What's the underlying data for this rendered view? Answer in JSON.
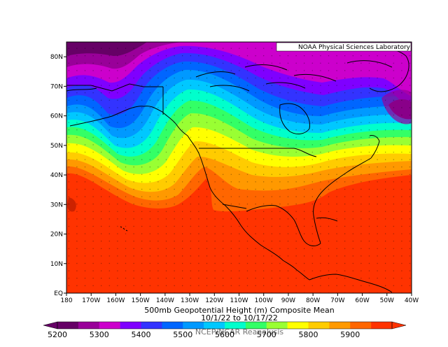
{
  "credit": "NOAA Physical Sciences Laboratory",
  "title": "500mb Geopotential Height (m) Composite Mean",
  "date_range": "10/1/22 to 10/17/22",
  "source": "NCEP/NCAR Reanalysis",
  "map": {
    "lon_labels": [
      "180",
      "170W",
      "160W",
      "150W",
      "140W",
      "130W",
      "120W",
      "110W",
      "100W",
      "90W",
      "80W",
      "70W",
      "60W",
      "50W",
      "40W"
    ],
    "lat_labels": [
      "80N",
      "70N",
      "60N",
      "50N",
      "40N",
      "30N",
      "20N",
      "10N",
      "EQ"
    ],
    "lon_range": [
      -180,
      -40
    ],
    "lat_range": [
      0,
      85
    ]
  },
  "colorbar": {
    "labels": [
      "5200",
      "5300",
      "5400",
      "5500",
      "5600",
      "5700",
      "5800",
      "5900"
    ],
    "colors": [
      "#660066",
      "#990099",
      "#cc00cc",
      "#7f00ff",
      "#3333ff",
      "#0066ff",
      "#0099ff",
      "#00c8ff",
      "#00ffcc",
      "#33ff66",
      "#99ff33",
      "#ffff00",
      "#ffcc00",
      "#ff9900",
      "#ff6600",
      "#ff3300"
    ]
  },
  "colors": {
    "frame": "#000000",
    "background": "#ffffff"
  }
}
